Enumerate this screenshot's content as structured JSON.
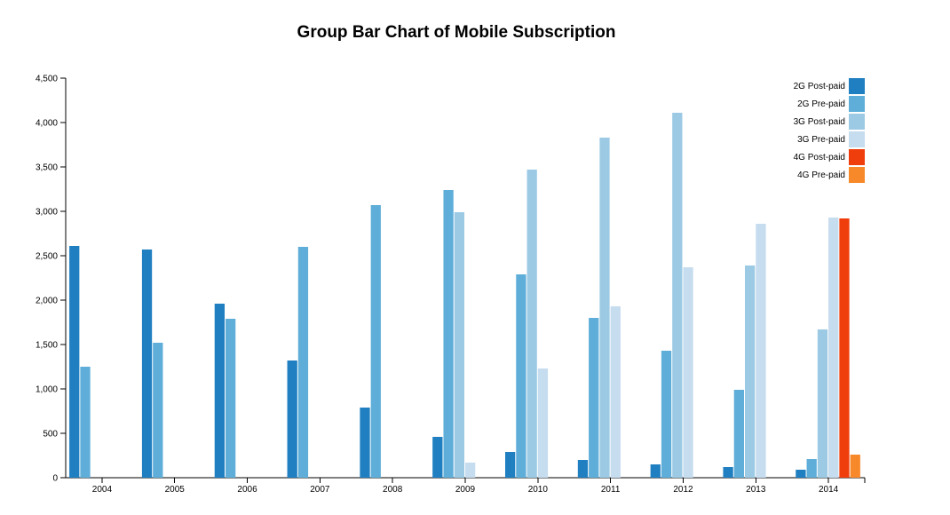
{
  "chart_data": {
    "type": "bar",
    "title": "Group Bar Chart of Mobile Subscription",
    "xlabel": "",
    "ylabel": "",
    "ylim": [
      0,
      4500
    ],
    "yticks": [
      0,
      500,
      1000,
      1500,
      2000,
      2500,
      3000,
      3500,
      4000,
      4500
    ],
    "ytick_labels": [
      "0",
      "500",
      "1,000",
      "1,500",
      "2,000",
      "2,500",
      "3,000",
      "3,500",
      "4,000",
      "4,500"
    ],
    "categories": [
      "2004",
      "2005",
      "2006",
      "2007",
      "2008",
      "2009",
      "2010",
      "2011",
      "2012",
      "2013",
      "2014"
    ],
    "legend_position": "top-right",
    "grid": false,
    "series": [
      {
        "name": "2G Post-paid",
        "color": "#1f7fc1",
        "values": [
          2610,
          2570,
          1960,
          1320,
          790,
          460,
          290,
          200,
          150,
          120,
          90
        ]
      },
      {
        "name": "2G Pre-paid",
        "color": "#5faed9",
        "values": [
          1250,
          1520,
          1790,
          2600,
          3070,
          3240,
          2290,
          1800,
          1430,
          990,
          210
        ]
      },
      {
        "name": "3G Post-paid",
        "color": "#9ccae4",
        "values": [
          0,
          0,
          0,
          0,
          0,
          2990,
          3470,
          3830,
          4110,
          2390,
          1670
        ]
      },
      {
        "name": "3G Pre-paid",
        "color": "#c6dcef",
        "values": [
          0,
          0,
          0,
          0,
          0,
          170,
          1230,
          1930,
          2370,
          2860,
          2930
        ]
      },
      {
        "name": "4G Post-paid",
        "color": "#ef3e0c",
        "values": [
          0,
          0,
          0,
          0,
          0,
          0,
          0,
          0,
          0,
          0,
          2920
        ]
      },
      {
        "name": "4G Pre-paid",
        "color": "#f8892b",
        "values": [
          0,
          0,
          0,
          0,
          0,
          0,
          0,
          0,
          0,
          0,
          260
        ]
      }
    ]
  }
}
